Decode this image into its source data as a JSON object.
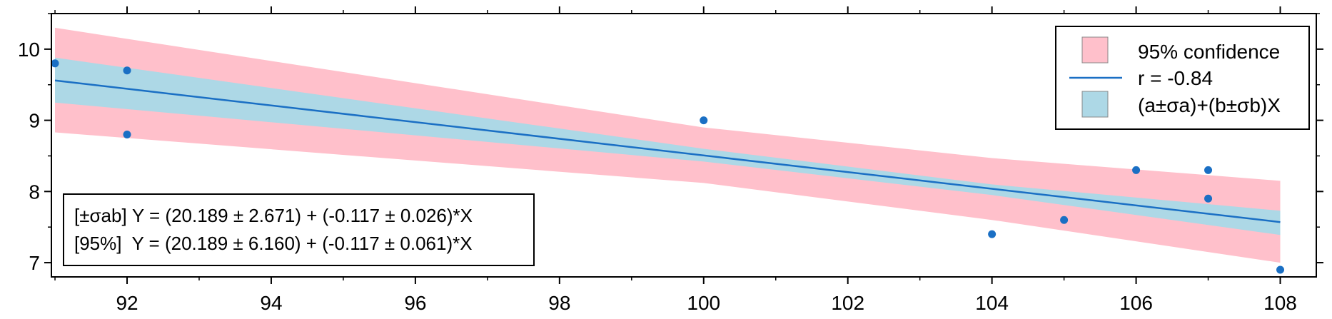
{
  "chart_data": {
    "type": "scatter",
    "title": "",
    "xlabel": "",
    "ylabel": "",
    "xlim": [
      90.95,
      108.5
    ],
    "ylim": [
      6.8,
      10.5
    ],
    "x_ticks": [
      92,
      94,
      96,
      98,
      100,
      102,
      104,
      106,
      108
    ],
    "x_tick_labels": [
      "92",
      "94",
      "96",
      "98",
      "100",
      "102",
      "104",
      "106",
      "108"
    ],
    "y_ticks": [
      7,
      8,
      9,
      10
    ],
    "y_tick_labels": [
      "7",
      "8",
      "9",
      "10"
    ],
    "grid": false,
    "points": {
      "x": [
        91,
        92,
        92,
        100,
        104,
        105,
        106,
        107,
        107,
        108
      ],
      "y": [
        9.8,
        9.7,
        8.8,
        9.0,
        7.4,
        7.6,
        8.3,
        8.3,
        7.9,
        6.9
      ]
    },
    "fit_line": {
      "name": "r = -0.84",
      "x": [
        91,
        108
      ],
      "y": [
        9.56,
        7.57
      ]
    },
    "band_95": {
      "name": "95% confidence",
      "x": [
        91,
        100,
        104,
        108
      ],
      "upper": [
        10.3,
        8.9,
        8.47,
        8.15
      ],
      "lower": [
        8.83,
        8.12,
        7.6,
        7.0
      ]
    },
    "band_ab": {
      "name": "(a±σa)+(b±σb)X",
      "x": [
        91,
        100,
        104,
        108
      ],
      "upper": [
        9.88,
        8.6,
        8.1,
        7.73
      ],
      "lower": [
        9.25,
        8.42,
        7.95,
        7.39
      ]
    },
    "legend_placement": "top-right",
    "annotation_lines": [
      "[±σab] Y = (20.189 ± 2.671) + (-0.117 ± 0.026)*X",
      "[95%]  Y = (20.189 ± 6.160) + (-0.117 ± 0.061)*X"
    ]
  },
  "colors": {
    "band_95": "#ffc0cb",
    "band_ab": "#add8e6",
    "line": "#1a6fc4",
    "points": "#1a6fc4",
    "axis": "#000000"
  }
}
